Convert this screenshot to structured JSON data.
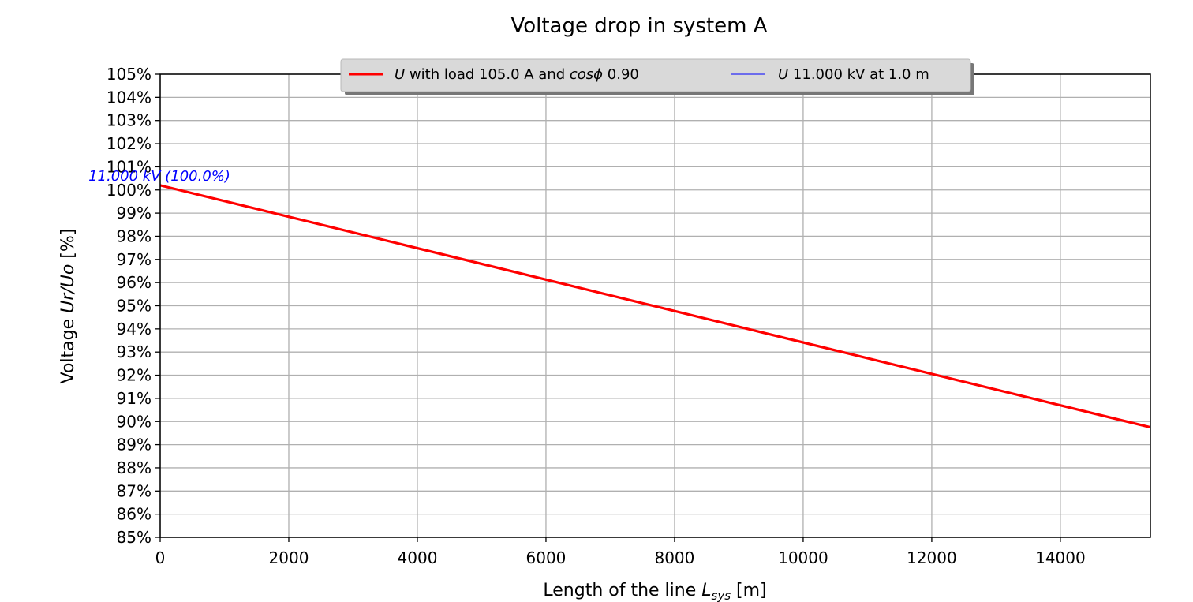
{
  "chart_data": {
    "type": "line",
    "title": "Voltage drop in system A",
    "xlabel_main": "Length of the line ",
    "xlabel_var": "L",
    "xlabel_sub": "sys",
    "xlabel_unit": " [m]",
    "ylabel_main": "Voltage ",
    "ylabel_expr": "Ur/Uo",
    "ylabel_unit": " [%]",
    "xlim": [
      0,
      15400
    ],
    "ylim": [
      85,
      105
    ],
    "x_ticks": [
      0,
      2000,
      4000,
      6000,
      8000,
      10000,
      12000,
      14000
    ],
    "y_ticks": [
      85,
      86,
      87,
      88,
      89,
      90,
      91,
      92,
      93,
      94,
      95,
      96,
      97,
      98,
      99,
      100,
      101,
      102,
      103,
      104,
      105
    ],
    "y_tick_suffix": "%",
    "grid": true,
    "legend_position": "top-center",
    "series": [
      {
        "name": "U with load 105.0 A and cosϕ 0.90",
        "legend_var": "U",
        "legend_mid": " with load 105.0 A and ",
        "legend_cos": "cosϕ",
        "legend_tail": " 0.90",
        "color": "#ff0000",
        "x": [
          0,
          15400
        ],
        "y": [
          100.2,
          89.75
        ]
      },
      {
        "name": "U 11.000 kV at 1.0 m",
        "legend_var": "U",
        "legend_tail": " 11.000 kV at 1.0 m",
        "color": "#0000ff"
      }
    ],
    "annotation": {
      "text": "11.000 kV (100.0%)",
      "color": "#0000ff"
    }
  }
}
